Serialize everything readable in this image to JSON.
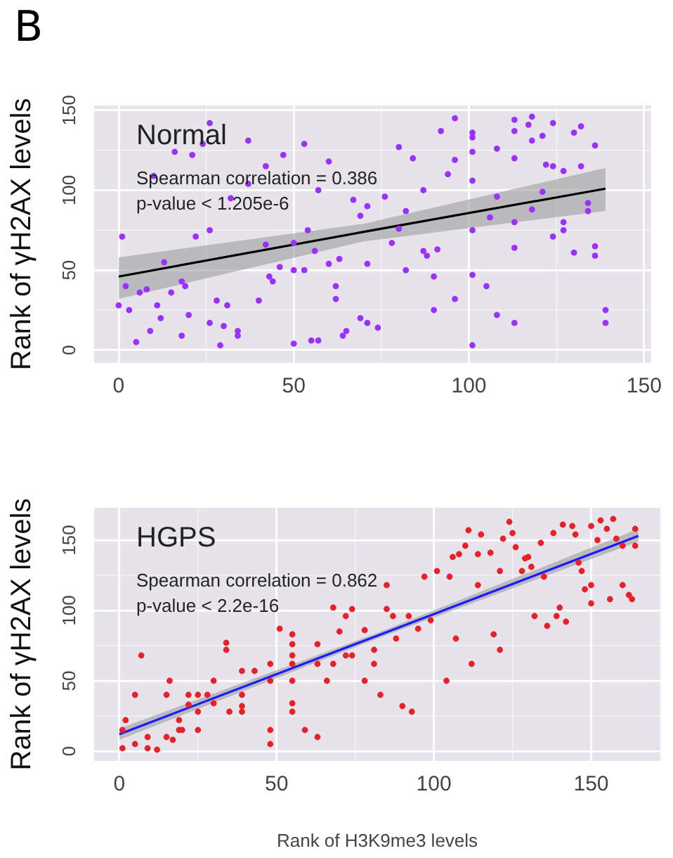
{
  "chart_data": [
    {
      "type": "scatter",
      "title": "Normal",
      "ylabel": "Rank of γH2AX levels",
      "annotations": [
        "B",
        "Spearman correlation = 0.386",
        "p-value < 1.205e-6"
      ],
      "xlim": [
        -7,
        152
      ],
      "ylim": [
        -8,
        153
      ],
      "xticks": [
        0,
        50,
        100,
        150
      ],
      "yticks": [
        0,
        50,
        100,
        150
      ],
      "grid": true,
      "legend": false,
      "series": [
        {
          "color": "#9b30ff",
          "x": [
            0,
            1,
            2,
            3,
            5,
            6,
            8,
            9,
            10,
            11,
            12,
            13,
            15,
            16,
            18,
            18,
            19,
            20,
            21,
            22,
            24,
            26,
            26,
            26,
            28,
            29,
            30,
            31,
            32,
            34,
            34,
            37,
            37,
            40,
            42,
            42,
            43,
            44,
            46,
            47,
            50,
            50,
            50,
            53,
            53,
            54,
            55,
            56,
            57,
            57,
            60,
            60,
            62,
            62,
            63,
            64,
            65,
            67,
            69,
            69,
            71,
            71,
            71,
            74,
            76,
            78,
            80,
            80,
            82,
            82,
            84,
            87,
            87,
            88,
            90,
            90,
            91,
            92,
            94,
            96,
            96,
            96,
            101,
            101,
            101,
            101,
            101,
            101,
            101,
            105,
            106,
            108,
            108,
            108,
            113,
            113,
            113,
            113,
            113,
            113,
            117,
            118,
            118,
            118,
            121,
            121,
            122,
            124,
            124,
            124,
            127,
            127,
            127,
            130,
            130,
            132,
            132,
            134,
            134,
            136,
            136,
            136,
            139,
            139
          ],
          "values": [
            28,
            71,
            40,
            25,
            5,
            36,
            38,
            12,
            109,
            28,
            20,
            55,
            36,
            124,
            9,
            43,
            40,
            22,
            122,
            71,
            129,
            142,
            17,
            75,
            31,
            3,
            15,
            28,
            95,
            9,
            12,
            131,
            104,
            31,
            115,
            66,
            46,
            43,
            52,
            122,
            4,
            50,
            67,
            129,
            50,
            75,
            6,
            62,
            6,
            100,
            118,
            54,
            40,
            32,
            57,
            9,
            12,
            94,
            20,
            84,
            54,
            90,
            17,
            14,
            96,
            67,
            127,
            76,
            87,
            50,
            120,
            62,
            100,
            59,
            46,
            25,
            63,
            137,
            110,
            145,
            119,
            32,
            136,
            133,
            124,
            106,
            75,
            47,
            3,
            40,
            83,
            126,
            96,
            22,
            144,
            137,
            120,
            80,
            64,
            17,
            141,
            146,
            131,
            88,
            134,
            99,
            116,
            142,
            115,
            71,
            112,
            80,
            75,
            136,
            61,
            140,
            115,
            92,
            87,
            128,
            65,
            59,
            25,
            17
          ]
        },
        {
          "type": "line",
          "color": "#000000",
          "x": [
            0,
            70,
            139
          ],
          "values": [
            46,
            74,
            101
          ],
          "lower": [
            32,
            68,
            87
          ],
          "upper": [
            58,
            79,
            114
          ]
        }
      ]
    },
    {
      "type": "scatter",
      "title": "HGPS",
      "xlabel": "Rank of H3K9me3 levels",
      "ylabel": "Rank of γH2AX levels",
      "annotations": [
        "Spearman correlation = 0.862",
        "p-value < 2.2e-16"
      ],
      "xlim": [
        -8,
        172
      ],
      "ylim": [
        -7,
        173
      ],
      "xticks": [
        0,
        50,
        100,
        150
      ],
      "yticks": [
        0,
        50,
        100,
        150
      ],
      "grid": true,
      "legend": false,
      "series": [
        {
          "color": "#e8202a",
          "x": [
            1,
            1,
            2,
            5,
            5,
            7,
            9,
            9,
            12,
            15,
            15,
            16,
            17,
            19,
            19,
            20,
            22,
            22,
            25,
            25,
            25,
            28,
            30,
            30,
            34,
            34,
            35,
            39,
            39,
            39,
            39,
            43,
            48,
            48,
            48,
            48,
            51,
            55,
            55,
            55,
            55,
            55,
            55,
            55,
            59,
            63,
            63,
            63,
            66,
            68,
            68,
            70,
            72,
            72,
            74,
            74,
            78,
            78,
            81,
            81,
            83,
            85,
            85,
            87,
            88,
            90,
            92,
            93,
            95,
            97,
            99,
            101,
            104,
            105,
            106,
            107,
            108,
            110,
            111,
            112,
            114,
            114,
            115,
            118,
            119,
            121,
            121,
            122,
            124,
            125,
            126,
            128,
            129,
            130,
            131,
            132,
            134,
            135,
            136,
            138,
            139,
            140,
            141,
            142,
            144,
            145,
            146,
            147,
            148,
            150,
            150,
            150,
            152,
            153,
            155,
            156,
            157,
            158,
            160,
            160,
            162,
            163,
            164,
            164
          ],
          "values": [
            15,
            2,
            22,
            40,
            5,
            68,
            2,
            10,
            1,
            40,
            10,
            50,
            8,
            22,
            15,
            15,
            40,
            33,
            15,
            40,
            28,
            40,
            50,
            34,
            77,
            72,
            28,
            57,
            40,
            32,
            28,
            57,
            62,
            50,
            15,
            5,
            87,
            83,
            76,
            68,
            62,
            50,
            34,
            28,
            15,
            76,
            62,
            10,
            50,
            102,
            62,
            85,
            96,
            68,
            68,
            101,
            86,
            50,
            72,
            62,
            40,
            118,
            101,
            96,
            80,
            32,
            96,
            28,
            87,
            124,
            93,
            128,
            50,
            124,
            138,
            80,
            140,
            146,
            157,
            62,
            118,
            140,
            154,
            141,
            83,
            128,
            72,
            151,
            163,
            155,
            145,
            128,
            137,
            138,
            131,
            96,
            148,
            124,
            89,
            155,
            96,
            102,
            161,
            92,
            160,
            154,
            134,
            128,
            115,
            118,
            105,
            160,
            150,
            164,
            158,
            108,
            165,
            151,
            146,
            118,
            111,
            108,
            146,
            158
          ]
        },
        {
          "type": "line",
          "color": "#1a1aff",
          "x": [
            0,
            82,
            165
          ],
          "values": [
            12,
            82,
            153
          ],
          "lower": [
            8,
            80,
            149
          ],
          "upper": [
            16,
            84,
            158
          ]
        }
      ]
    }
  ]
}
